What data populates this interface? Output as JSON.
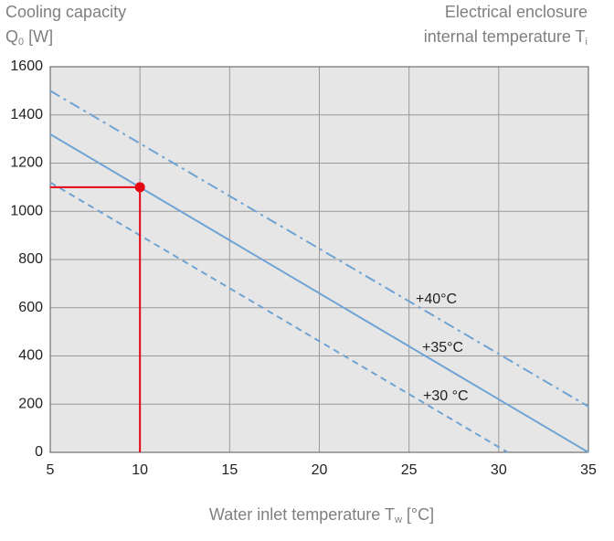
{
  "chart_data": {
    "type": "line",
    "y_title_line1": "Cooling capacity",
    "y_title_line2": {
      "main": "Q",
      "sub": "0",
      "rest": " [W]"
    },
    "legend_title_line1": "Electrical enclosure",
    "legend_title_line2": {
      "main": "internal temperature T",
      "sub": "i"
    },
    "x_title": {
      "main": "Water inlet temperature T",
      "sub": "w",
      "rest": " [°C]"
    },
    "xlim": [
      5,
      35
    ],
    "ylim": [
      0,
      1600
    ],
    "xticks": [
      5,
      10,
      15,
      20,
      25,
      30,
      35
    ],
    "yticks": [
      0,
      200,
      400,
      600,
      800,
      1000,
      1200,
      1400,
      1600
    ],
    "grid": true,
    "series": [
      {
        "name": "+40°C",
        "color": "#6fa3d3",
        "dash": "dashdot",
        "x": [
          5,
          35
        ],
        "values": [
          1500,
          190
        ]
      },
      {
        "name": "+35°C",
        "color": "#6fa3d3",
        "dash": "solid",
        "x": [
          5,
          35
        ],
        "values": [
          1320,
          0
        ]
      },
      {
        "name": "+30 °C",
        "color": "#6fa3d3",
        "dash": "dashed",
        "x": [
          5,
          30.5
        ],
        "values": [
          1120,
          0
        ]
      }
    ],
    "point": {
      "x": 10,
      "y": 1100,
      "color": "#e30613"
    }
  }
}
